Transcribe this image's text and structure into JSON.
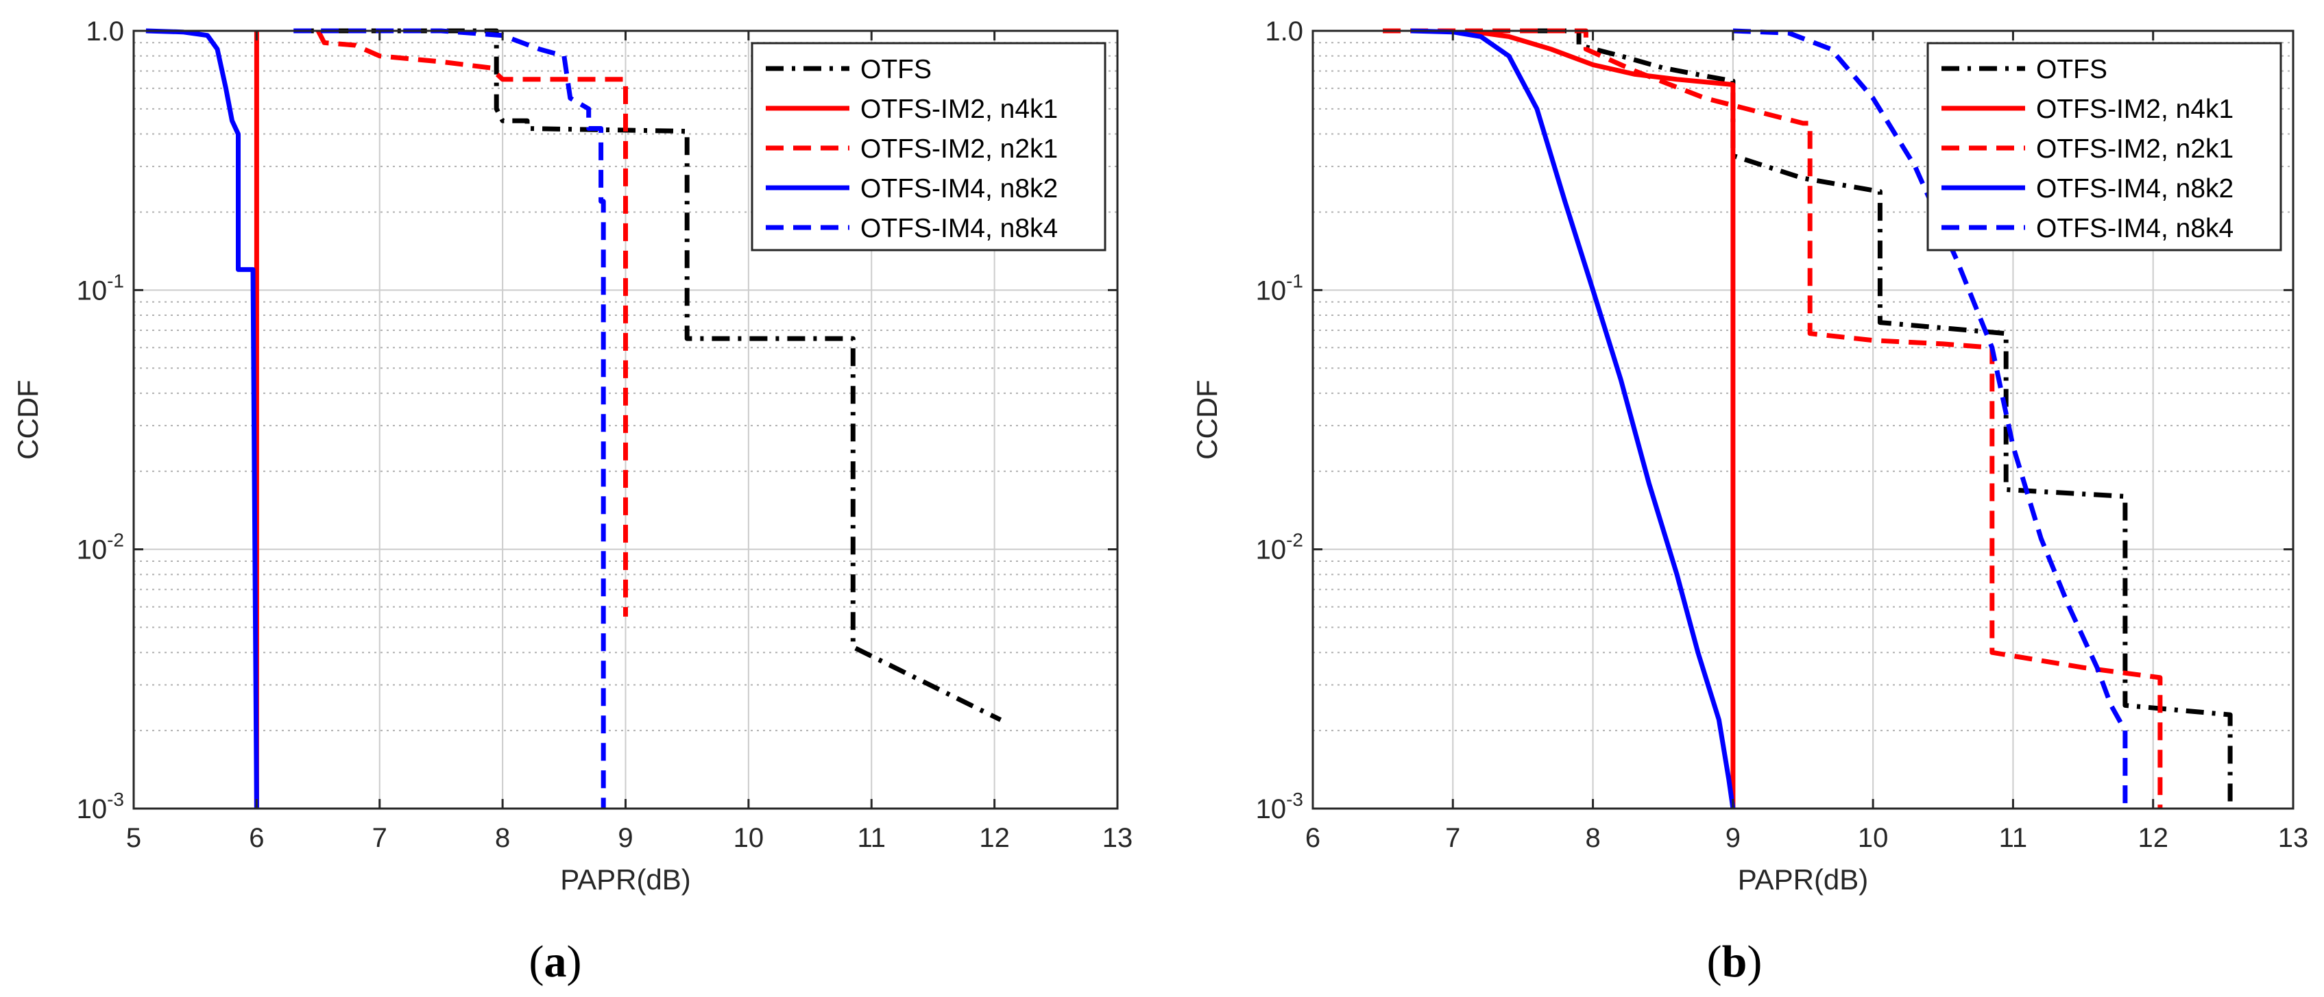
{
  "colors": {
    "black": "#000000",
    "red": "#ff0000",
    "blue": "#0000ff",
    "grid": "#cccccc",
    "axis": "#262626"
  },
  "chart_data": [
    {
      "type": "line",
      "panel_label": "a",
      "panel_label_display": "(a)",
      "title": "",
      "xlabel": "PAPR(dB)",
      "ylabel": "CCDF",
      "xscale": "linear",
      "yscale": "log",
      "xlim": [
        5,
        13
      ],
      "ylim": [
        0.001,
        1
      ],
      "x_ticks": [
        5,
        6,
        7,
        8,
        9,
        10,
        11,
        12,
        13
      ],
      "x_tick_labels": [
        "5",
        "6",
        "7",
        "8",
        "9",
        "10",
        "11",
        "12",
        "13"
      ],
      "y_ticks": [
        0.001,
        0.01,
        0.1,
        1
      ],
      "y_tick_labels": [
        {
          "base": "10",
          "exp": "-3"
        },
        {
          "base": "10",
          "exp": "-2"
        },
        {
          "base": "10",
          "exp": "-1"
        },
        {
          "base": "1.0",
          "exp": ""
        }
      ],
      "grid": true,
      "minor_grid": true,
      "legend_position": "top-right",
      "series": [
        {
          "name": "OTFS",
          "color": "#000000",
          "dash": "dashdot",
          "points": [
            [
              6.32,
              1
            ],
            [
              7.95,
              1
            ],
            [
              7.95,
              0.5
            ],
            [
              8.0,
              0.45
            ],
            [
              8.2,
              0.45
            ],
            [
              8.2,
              0.42
            ],
            [
              9.5,
              0.41
            ],
            [
              9.5,
              0.065
            ],
            [
              10.85,
              0.065
            ],
            [
              10.85,
              0.0042
            ],
            [
              12.05,
              0.0022
            ]
          ]
        },
        {
          "name": "OTFS-IM2, n4k1",
          "color": "#ff0000",
          "dash": "solid",
          "points": [
            [
              6.0,
              1
            ],
            [
              6.0,
              0.001
            ]
          ]
        },
        {
          "name": "OTFS-IM2, n2k1",
          "color": "#ff0000",
          "dash": "dashed",
          "points": [
            [
              6.5,
              1
            ],
            [
              6.55,
              0.9
            ],
            [
              6.8,
              0.88
            ],
            [
              7.0,
              0.8
            ],
            [
              7.5,
              0.76
            ],
            [
              7.9,
              0.72
            ],
            [
              8.0,
              0.65
            ],
            [
              9.0,
              0.65
            ],
            [
              9.0,
              0.0055
            ]
          ]
        },
        {
          "name": "OTFS-IM4, n8k2",
          "color": "#0000ff",
          "dash": "solid",
          "points": [
            [
              5.1,
              1
            ],
            [
              5.4,
              0.99
            ],
            [
              5.6,
              0.96
            ],
            [
              5.68,
              0.85
            ],
            [
              5.75,
              0.6
            ],
            [
              5.8,
              0.45
            ],
            [
              5.85,
              0.4
            ],
            [
              5.85,
              0.12
            ],
            [
              5.95,
              0.12
            ],
            [
              5.97,
              0.12
            ],
            [
              6.0,
              0.001
            ]
          ]
        },
        {
          "name": "OTFS-IM4, n8k4",
          "color": "#0000ff",
          "dash": "dashed",
          "points": [
            [
              6.3,
              1
            ],
            [
              7.5,
              1
            ],
            [
              8.0,
              0.96
            ],
            [
              8.3,
              0.85
            ],
            [
              8.5,
              0.8
            ],
            [
              8.55,
              0.55
            ],
            [
              8.7,
              0.5
            ],
            [
              8.7,
              0.42
            ],
            [
              8.8,
              0.42
            ],
            [
              8.8,
              0.22
            ],
            [
              8.82,
              0.22
            ],
            [
              8.82,
              0.001
            ]
          ]
        }
      ]
    },
    {
      "type": "line",
      "panel_label": "b",
      "panel_label_display": "(b)",
      "title": "",
      "xlabel": "PAPR(dB)",
      "ylabel": "CCDF",
      "xscale": "linear",
      "yscale": "log",
      "xlim": [
        6,
        13
      ],
      "ylim": [
        0.001,
        1
      ],
      "x_ticks": [
        6,
        7,
        8,
        9,
        10,
        11,
        12,
        13
      ],
      "x_tick_labels": [
        "6",
        "7",
        "8",
        "9",
        "10",
        "11",
        "12",
        "13"
      ],
      "y_ticks": [
        0.001,
        0.01,
        0.1,
        1
      ],
      "y_tick_labels": [
        {
          "base": "10",
          "exp": "-3"
        },
        {
          "base": "10",
          "exp": "-2"
        },
        {
          "base": "10",
          "exp": "-1"
        },
        {
          "base": "1.0",
          "exp": ""
        }
      ],
      "grid": true,
      "minor_grid": true,
      "legend_position": "top-right",
      "series": [
        {
          "name": "OTFS",
          "color": "#000000",
          "dash": "dashdot",
          "points": [
            [
              7.6,
              1
            ],
            [
              7.9,
              1
            ],
            [
              7.9,
              0.88
            ],
            [
              8.2,
              0.8
            ],
            [
              8.5,
              0.72
            ],
            [
              8.8,
              0.67
            ],
            [
              9.0,
              0.64
            ],
            [
              9.0,
              0.33
            ],
            [
              9.5,
              0.27
            ],
            [
              10.05,
              0.24
            ],
            [
              10.05,
              0.075
            ],
            [
              10.95,
              0.068
            ],
            [
              10.95,
              0.017
            ],
            [
              11.8,
              0.016
            ],
            [
              11.8,
              0.0025
            ],
            [
              12.55,
              0.0023
            ],
            [
              12.55,
              0.001
            ]
          ]
        },
        {
          "name": "OTFS-IM2, n4k1",
          "color": "#ff0000",
          "dash": "solid",
          "points": [
            [
              7.1,
              1
            ],
            [
              7.4,
              0.95
            ],
            [
              7.7,
              0.85
            ],
            [
              8.0,
              0.74
            ],
            [
              8.3,
              0.68
            ],
            [
              8.6,
              0.65
            ],
            [
              9.0,
              0.62
            ],
            [
              9.0,
              0.001
            ]
          ]
        },
        {
          "name": "OTFS-IM2, n2k1",
          "color": "#ff0000",
          "dash": "dashed",
          "points": [
            [
              6.5,
              1
            ],
            [
              7.95,
              1
            ],
            [
              7.95,
              0.85
            ],
            [
              8.3,
              0.7
            ],
            [
              8.8,
              0.55
            ],
            [
              9.5,
              0.44
            ],
            [
              9.55,
              0.44
            ],
            [
              9.55,
              0.068
            ],
            [
              10.0,
              0.064
            ],
            [
              10.5,
              0.062
            ],
            [
              10.85,
              0.06
            ],
            [
              10.85,
              0.004
            ],
            [
              11.5,
              0.0035
            ],
            [
              12.05,
              0.0032
            ],
            [
              12.05,
              0.001
            ]
          ]
        },
        {
          "name": "OTFS-IM4, n8k2",
          "color": "#0000ff",
          "dash": "solid",
          "points": [
            [
              6.7,
              1
            ],
            [
              7.0,
              0.99
            ],
            [
              7.2,
              0.95
            ],
            [
              7.4,
              0.8
            ],
            [
              7.6,
              0.5
            ],
            [
              7.8,
              0.22
            ],
            [
              8.0,
              0.1
            ],
            [
              8.2,
              0.045
            ],
            [
              8.4,
              0.018
            ],
            [
              8.6,
              0.008
            ],
            [
              8.75,
              0.004
            ],
            [
              8.9,
              0.0022
            ],
            [
              8.97,
              0.0013
            ],
            [
              9.0,
              0.001
            ]
          ]
        },
        {
          "name": "OTFS-IM4, n8k4",
          "color": "#0000ff",
          "dash": "dashed",
          "points": [
            [
              9.0,
              1
            ],
            [
              9.4,
              0.98
            ],
            [
              9.7,
              0.85
            ],
            [
              10.0,
              0.55
            ],
            [
              10.3,
              0.3
            ],
            [
              10.6,
              0.13
            ],
            [
              10.85,
              0.06
            ],
            [
              11.0,
              0.025
            ],
            [
              11.2,
              0.011
            ],
            [
              11.4,
              0.006
            ],
            [
              11.6,
              0.0035
            ],
            [
              11.7,
              0.0025
            ],
            [
              11.8,
              0.002
            ],
            [
              11.8,
              0.001
            ]
          ]
        }
      ]
    }
  ]
}
